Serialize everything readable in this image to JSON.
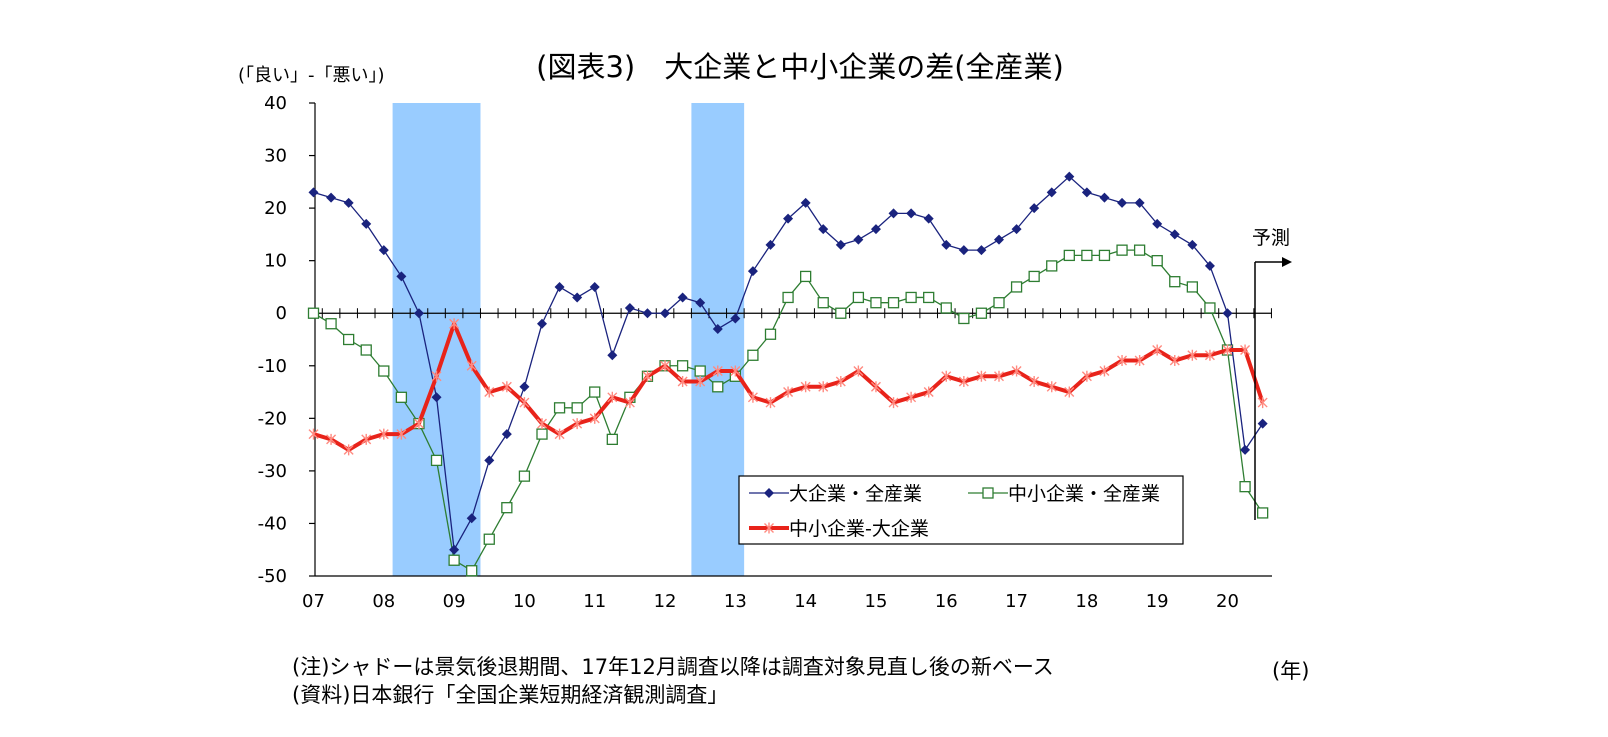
{
  "notes": {
    "note": "(注)シャドーは景気後退期間、17年12月調査以降は調査対象見直し後の新ベース",
    "source": "(資料)日本銀行「全国企業短期経済観測調査」"
  },
  "chart_data": {
    "type": "line",
    "title": "(図表3)　大企業と中小企業の差(全産業)",
    "ylabel": "(「良い」-「悪い」)",
    "xlabel": "(年)",
    "ylim": [
      -50,
      40
    ],
    "yticks": [
      40,
      30,
      20,
      10,
      0,
      -10,
      -20,
      -30,
      -40,
      -50
    ],
    "x_tick_labels": [
      "07",
      "08",
      "09",
      "10",
      "11",
      "12",
      "13",
      "14",
      "15",
      "16",
      "17",
      "18",
      "19",
      "20"
    ],
    "grid": false,
    "legend_position": "bottom-right",
    "forecast_label": "予測",
    "recession_shading": [
      {
        "start_index": 4.5,
        "end_index": 9.5
      },
      {
        "start_index": 21.5,
        "end_index": 24.5
      }
    ],
    "series": [
      {
        "name": "大企業・全産業",
        "color": "#1a237e",
        "marker": "diamond",
        "values": [
          23,
          22,
          21,
          17,
          12,
          7,
          0,
          -16,
          -45,
          -39,
          -28,
          -23,
          -14,
          -2,
          5,
          3,
          5,
          -8,
          1,
          0,
          0,
          3,
          2,
          -3,
          -1,
          8,
          13,
          18,
          21,
          16,
          13,
          14,
          16,
          19,
          19,
          18,
          13,
          12,
          12,
          14,
          16,
          20,
          23,
          26,
          23,
          22,
          21,
          21,
          17,
          15,
          13,
          9,
          0,
          -26,
          -21
        ]
      },
      {
        "name": "中小企業・全産業",
        "color": "#2e7d32",
        "marker": "square",
        "values": [
          0,
          -2,
          -5,
          -7,
          -11,
          -16,
          -21,
          -28,
          -47,
          -49,
          -43,
          -37,
          -31,
          -23,
          -18,
          -18,
          -15,
          -24,
          -16,
          -12,
          -10,
          -10,
          -11,
          -14,
          -12,
          -8,
          -4,
          3,
          7,
          2,
          0,
          3,
          2,
          2,
          3,
          3,
          1,
          -1,
          0,
          2,
          5,
          7,
          9,
          11,
          11,
          11,
          12,
          12,
          10,
          6,
          5,
          1,
          -7,
          -33,
          -38
        ]
      },
      {
        "name": "中小企業-大企業",
        "color": "#e8231a",
        "marker": "star",
        "values": [
          -23,
          -24,
          -26,
          -24,
          -23,
          -23,
          -21,
          -12,
          -2,
          -10,
          -15,
          -14,
          -17,
          -21,
          -23,
          -21,
          -20,
          -16,
          -17,
          -12,
          -10,
          -13,
          -13,
          -11,
          -11,
          -16,
          -17,
          -15,
          -14,
          -14,
          -13,
          -11,
          -14,
          -17,
          -16,
          -15,
          -12,
          -13,
          -12,
          -12,
          -11,
          -13,
          -14,
          -15,
          -12,
          -11,
          -9,
          -9,
          -7,
          -9,
          -8,
          -8,
          -7,
          -7,
          -17
        ]
      }
    ]
  }
}
